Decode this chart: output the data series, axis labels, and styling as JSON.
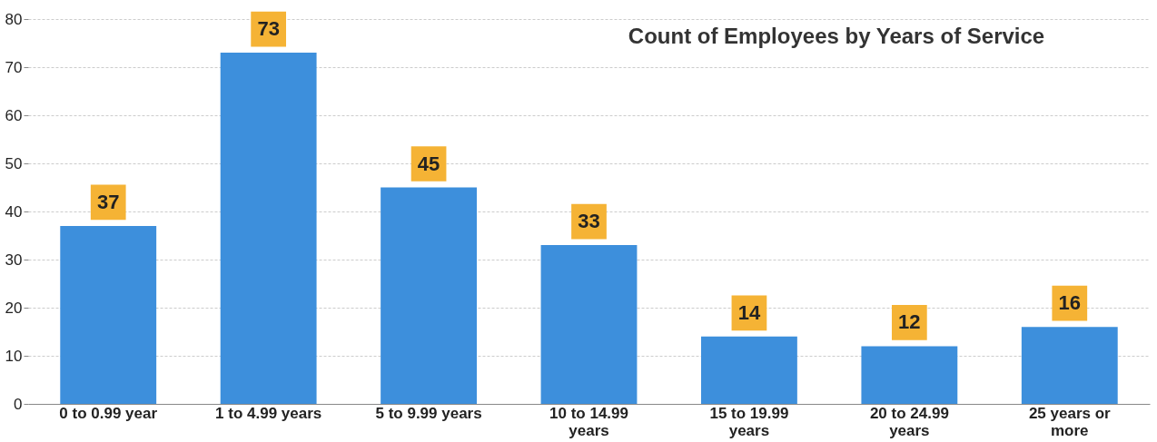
{
  "chart_data": {
    "type": "bar",
    "title": "Count of Employees by Years of Service",
    "categories": [
      "0 to 0.99 year",
      "1 to 4.99 years",
      "5 to 9.99 years",
      "10 to 14.99 years",
      "15 to 19.99 years",
      "20 to 24.99 years",
      "25 years or more"
    ],
    "values": [
      37,
      73,
      45,
      33,
      14,
      12,
      16
    ],
    "color": "#3d8fdc",
    "ylim": [
      0,
      80
    ],
    "yticks": [
      0,
      10,
      20,
      30,
      40,
      50,
      60,
      70,
      80
    ],
    "grid": "y",
    "data_labels": true
  }
}
